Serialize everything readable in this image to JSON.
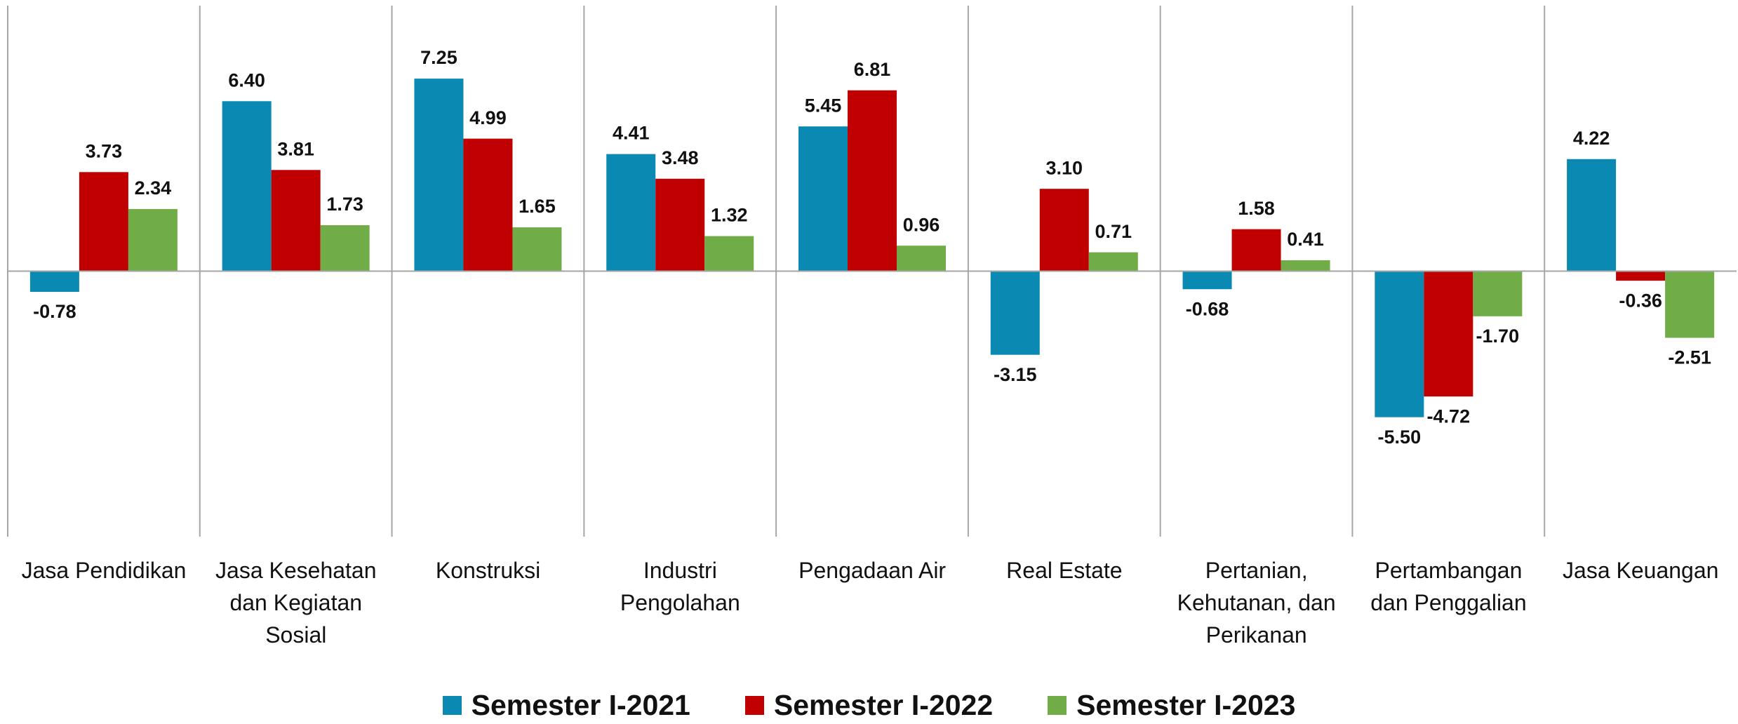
{
  "chart_data": {
    "type": "bar",
    "categories": [
      "Jasa Pendidikan",
      "Jasa Kesehatan\ndan Kegiatan\nSosial",
      "Konstruksi",
      "Industri\nPengolahan",
      "Pengadaan Air",
      "Real Estate",
      "Pertanian,\nKehutanan, dan\nPerikanan",
      "Pertambangan\ndan Penggalian",
      "Jasa Keuangan"
    ],
    "series": [
      {
        "name": "Semester I-2021",
        "color": "#0a89b3",
        "values": [
          -0.78,
          6.4,
          7.25,
          4.41,
          5.45,
          -3.15,
          -0.68,
          -5.5,
          4.22
        ],
        "value_labels": [
          "-0.78",
          "6.40",
          "7.25",
          "4.41",
          "5.45",
          "-3.15",
          "-0.68",
          "-5.50",
          "4.22"
        ]
      },
      {
        "name": "Semester I-2022",
        "color": "#c00000",
        "values": [
          3.73,
          3.81,
          4.99,
          3.48,
          6.81,
          3.1,
          1.58,
          -4.72,
          -0.36
        ],
        "value_labels": [
          "3.73",
          "3.81",
          "4.99",
          "3.48",
          "6.81",
          "3.10",
          "1.58",
          "-4.72",
          "-0.36"
        ]
      },
      {
        "name": "Semester I-2023",
        "color": "#70ad47",
        "values": [
          2.34,
          1.73,
          1.65,
          1.32,
          0.96,
          0.71,
          0.41,
          -1.7,
          -2.51
        ],
        "value_labels": [
          "2.34",
          "1.73",
          "1.65",
          "1.32",
          "0.96",
          "0.71",
          "0.41",
          "-1.70",
          "-2.51"
        ]
      }
    ],
    "ylim": [
      -10,
      10
    ],
    "legend": "bottom"
  }
}
